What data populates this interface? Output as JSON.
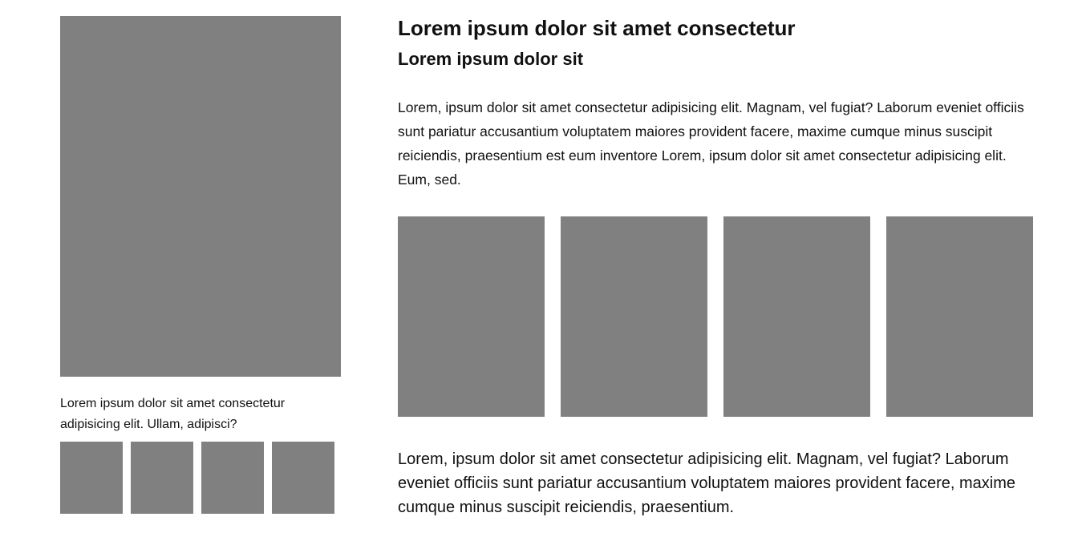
{
  "colors": {
    "placeholder": "#808080",
    "text": "#111111",
    "background": "#ffffff"
  },
  "left": {
    "caption": "Lorem ipsum dolor sit amet consectetur adipisicing elit. Ullam, adipisci?"
  },
  "right": {
    "title": "Lorem ipsum dolor sit amet consectetur",
    "subtitle": "Lorem ipsum dolor sit",
    "intro": "Lorem, ipsum dolor sit amet consectetur adipisicing elit. Magnam, vel fugiat? Laborum eveniet officiis sunt pariatur accusantium voluptatem maiores provident facere, maxime cumque minus suscipit reiciendis, praesentium est eum inventore Lorem, ipsum dolor sit amet consectetur adipisicing elit. Eum, sed.",
    "outro": "Lorem, ipsum dolor sit amet consectetur adipisicing elit. Magnam, vel fugiat? Laborum eveniet officiis sunt pariatur accusantium voluptatem maiores provident facere, maxime cumque minus suscipit reiciendis, praesentium."
  }
}
